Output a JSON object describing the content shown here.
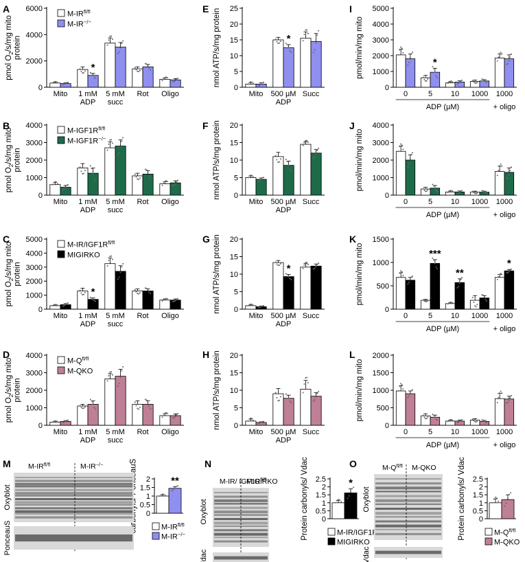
{
  "colors": {
    "white": "#ffffff",
    "blue": "#8f8ff0",
    "green": "#1e6b4a",
    "black": "#000000",
    "pink": "#bf7f97",
    "blot_bg": "#d9d9d9",
    "band": "#3a3a3a"
  },
  "chart_data": [
    {
      "panel": "A",
      "type": "bar",
      "ylabel": "pmol O2/s/mg mito protein",
      "ylim": [
        0,
        6000
      ],
      "yticks": [
        0,
        2000,
        4000,
        6000
      ],
      "categories": [
        [
          "Mito"
        ],
        [
          "1 mM",
          "ADP"
        ],
        [
          "5 mM",
          "succ"
        ],
        [
          "Rot"
        ],
        [
          "Oligo"
        ]
      ],
      "legend": [
        "M-IRfl/fl",
        "M-IR−/−"
      ],
      "series": [
        {
          "name": "M-IRfl/fl",
          "color": "white",
          "values": [
            320,
            1350,
            3350,
            1400,
            600
          ]
        },
        {
          "name": "M-IR−/−",
          "color": "blue",
          "values": [
            280,
            900,
            3050,
            1550,
            560
          ]
        }
      ],
      "errors": [
        [
          80,
          200,
          400,
          150,
          120
        ],
        [
          60,
          150,
          350,
          180,
          100
        ]
      ],
      "sig": [
        {
          "index": 1,
          "series": 1,
          "text": "*"
        }
      ]
    },
    {
      "panel": "B",
      "type": "bar",
      "ylabel": "pmol O2/s/mg mito protein",
      "ylim": [
        0,
        4000
      ],
      "yticks": [
        0,
        1000,
        2000,
        3000,
        4000
      ],
      "categories": [
        [
          "Mito"
        ],
        [
          "1 mM",
          "ADP"
        ],
        [
          "5 mM",
          "succ"
        ],
        [
          "Rot"
        ],
        [
          "Oligo"
        ]
      ],
      "legend": [
        "M-IGF1Rfl/fl",
        "M-IGF1R−/−"
      ],
      "series": [
        {
          "name": "M-IGF1Rfl/fl",
          "color": "white",
          "values": [
            600,
            1550,
            2700,
            1100,
            650
          ]
        },
        {
          "name": "M-IGF1R−/−",
          "color": "green",
          "values": [
            450,
            1250,
            2800,
            1200,
            700
          ]
        }
      ],
      "errors": [
        [
          120,
          250,
          350,
          150,
          120
        ],
        [
          100,
          300,
          350,
          200,
          120
        ]
      ],
      "sig": []
    },
    {
      "panel": "C",
      "type": "bar",
      "ylabel": "pmol O2/s/mg mito protein",
      "ylim": [
        0,
        5000
      ],
      "yticks": [
        0,
        1000,
        2000,
        3000,
        4000,
        5000
      ],
      "categories": [
        [
          "Mito"
        ],
        [
          "1 mM",
          "ADP"
        ],
        [
          "5 mM",
          "succ"
        ],
        [
          "Rot"
        ],
        [
          "Oligo"
        ]
      ],
      "legend": [
        "M-IR/IGF1Rfl/fl",
        "MIGIRKO"
      ],
      "series": [
        {
          "name": "M-IR/IGF1Rfl/fl",
          "color": "white",
          "values": [
            250,
            1300,
            3250,
            1300,
            650
          ]
        },
        {
          "name": "MIGIRKO",
          "color": "black",
          "values": [
            320,
            700,
            2700,
            1300,
            650
          ]
        }
      ],
      "errors": [
        [
          60,
          200,
          400,
          150,
          80
        ],
        [
          80,
          100,
          400,
          150,
          80
        ]
      ],
      "sig": [
        {
          "index": 1,
          "series": 1,
          "text": "*"
        }
      ]
    },
    {
      "panel": "D",
      "type": "bar",
      "ylabel": "pmol O2/s/mg mito protein",
      "ylim": [
        0,
        4000
      ],
      "yticks": [
        0,
        1000,
        2000,
        3000,
        4000
      ],
      "categories": [
        [
          "Mito"
        ],
        [
          "1 mM",
          "ADP"
        ],
        [
          "5 mM",
          "succ"
        ],
        [
          "Rot"
        ],
        [
          "Oligo"
        ]
      ],
      "legend": [
        "M-Qfl/fl",
        "M-QKO"
      ],
      "series": [
        {
          "name": "M-Qfl/fl",
          "color": "white",
          "values": [
            180,
            1100,
            2650,
            1200,
            550
          ]
        },
        {
          "name": "M-QKO",
          "color": "pink",
          "values": [
            220,
            1200,
            2800,
            1200,
            550
          ]
        }
      ],
      "errors": [
        [
          50,
          100,
          300,
          200,
          120
        ],
        [
          50,
          200,
          400,
          200,
          100
        ]
      ],
      "sig": []
    },
    {
      "panel": "E",
      "type": "bar",
      "ylabel": "nmol ATP/s/mg protein",
      "ylim": [
        0,
        25
      ],
      "yticks": [
        0,
        5,
        10,
        15,
        20,
        25
      ],
      "categories": [
        [
          "Mito"
        ],
        [
          "500 µM",
          "ADP"
        ],
        [
          "Succ"
        ]
      ],
      "series": [
        {
          "name": "M-IRfl/fl",
          "color": "white",
          "values": [
            1,
            15,
            15.5
          ]
        },
        {
          "name": "M-IR−/−",
          "color": "blue",
          "values": [
            1,
            12.5,
            14.5
          ]
        }
      ],
      "errors": [
        [
          0.5,
          0.8,
          2
        ],
        [
          0.4,
          1,
          2.5
        ]
      ],
      "sig": [
        {
          "index": 1,
          "series": 1,
          "text": "*"
        }
      ]
    },
    {
      "panel": "F",
      "type": "bar",
      "ylabel": "nmol ATP/s/mg protein",
      "ylim": [
        0,
        20
      ],
      "yticks": [
        0,
        5,
        10,
        15,
        20
      ],
      "categories": [
        [
          "Mito"
        ],
        [
          "500 µM",
          "ADP"
        ],
        [
          "Succ"
        ]
      ],
      "series": [
        {
          "name": "M-IGF1Rfl/fl",
          "color": "white",
          "values": [
            5,
            11,
            14.5
          ]
        },
        {
          "name": "M-IGF1R−/−",
          "color": "green",
          "values": [
            4.5,
            8.5,
            12
          ]
        }
      ],
      "errors": [
        [
          0.5,
          1.2,
          0.8
        ],
        [
          0.4,
          1.2,
          1
        ]
      ],
      "sig": []
    },
    {
      "panel": "G",
      "type": "bar",
      "ylabel": "nmol ATP/s/mg protein",
      "ylim": [
        0,
        20
      ],
      "yticks": [
        0,
        5,
        10,
        15,
        20
      ],
      "categories": [
        [
          "Mito"
        ],
        [
          "500 µM",
          "ADP"
        ],
        [
          "Succ"
        ]
      ],
      "series": [
        {
          "name": "M-IR/IGF1Rfl/fl",
          "color": "white",
          "values": [
            1,
            13.3,
            12
          ]
        },
        {
          "name": "MIGIRKO",
          "color": "black",
          "values": [
            0.7,
            9.3,
            12.3
          ]
        }
      ],
      "errors": [
        [
          0.3,
          0.6,
          1
        ],
        [
          0.2,
          0.6,
          0.6
        ]
      ],
      "sig": [
        {
          "index": 1,
          "series": 1,
          "text": "*"
        }
      ]
    },
    {
      "panel": "H",
      "type": "bar",
      "ylabel": "nmol ATP/s/mg protein",
      "ylim": [
        0,
        20
      ],
      "yticks": [
        0,
        5,
        10,
        15,
        20
      ],
      "categories": [
        [
          "Mito"
        ],
        [
          "500 µM",
          "ADP"
        ],
        [
          "Succ"
        ]
      ],
      "series": [
        {
          "name": "M-Qfl/fl",
          "color": "white",
          "values": [
            1.2,
            9,
            10.3
          ]
        },
        {
          "name": "M-QKO",
          "color": "pink",
          "values": [
            0.8,
            7.7,
            8.3
          ]
        }
      ],
      "errors": [
        [
          0.6,
          1.5,
          2.5
        ],
        [
          0.2,
          0.9,
          1
        ]
      ],
      "sig": []
    },
    {
      "panel": "I",
      "type": "bar",
      "ylabel": "pmol/min/mg mito",
      "ylim": [
        0,
        5000
      ],
      "yticks": [
        0,
        1000,
        2000,
        3000,
        4000,
        5000
      ],
      "xlabel": "ADP (µM)",
      "extra_label": "+ oligo",
      "categories": [
        [
          "0"
        ],
        [
          "5"
        ],
        [
          "10"
        ],
        [
          "1000"
        ],
        [
          "1000"
        ]
      ],
      "series": [
        {
          "name": "M-IRfl/fl",
          "color": "white",
          "values": [
            2050,
            600,
            280,
            370,
            1850
          ]
        },
        {
          "name": "M-IR−/−",
          "color": "blue",
          "values": [
            1800,
            950,
            330,
            400,
            1800
          ]
        }
      ],
      "errors": [
        [
          350,
          150,
          80,
          80,
          250
        ],
        [
          300,
          250,
          80,
          80,
          250
        ]
      ],
      "sig": [
        {
          "index": 1,
          "series": 1,
          "text": "*"
        }
      ]
    },
    {
      "panel": "J",
      "type": "bar",
      "ylabel": "pmol/min/mg mito",
      "ylim": [
        0,
        4000
      ],
      "yticks": [
        0,
        1000,
        2000,
        3000,
        4000
      ],
      "xlabel": "ADP (µM)",
      "extra_label": "+ oligo",
      "categories": [
        [
          "0"
        ],
        [
          "5"
        ],
        [
          "10"
        ],
        [
          "1000"
        ],
        [
          "1000"
        ]
      ],
      "series": [
        {
          "name": "M-IGF1Rfl/fl",
          "color": "white",
          "values": [
            2500,
            350,
            180,
            170,
            1350
          ]
        },
        {
          "name": "M-IGF1R−/−",
          "color": "green",
          "values": [
            2000,
            400,
            180,
            170,
            1300
          ]
        }
      ],
      "errors": [
        [
          300,
          100,
          60,
          60,
          300
        ],
        [
          300,
          150,
          60,
          60,
          250
        ]
      ],
      "sig": []
    },
    {
      "panel": "K",
      "type": "bar",
      "ylabel": "pmol/min/mg mito",
      "ylim": [
        0,
        1500
      ],
      "yticks": [
        0,
        500,
        1000,
        1500
      ],
      "xlabel": "ADP (µM)",
      "extra_label": "+ oligo",
      "categories": [
        [
          "0"
        ],
        [
          "5"
        ],
        [
          "10"
        ],
        [
          "1000"
        ],
        [
          "1000"
        ]
      ],
      "series": [
        {
          "name": "M-IR/IGF1Rfl/fl",
          "color": "white",
          "values": [
            680,
            190,
            120,
            190,
            680
          ]
        },
        {
          "name": "MIGIRKO",
          "color": "black",
          "values": [
            620,
            980,
            570,
            240,
            820
          ]
        }
      ],
      "errors": [
        [
          100,
          20,
          20,
          100,
          60
        ],
        [
          60,
          80,
          80,
          50,
          30
        ]
      ],
      "sig": [
        {
          "index": 1,
          "series": 1,
          "text": "***"
        },
        {
          "index": 2,
          "series": 1,
          "text": "**"
        },
        {
          "index": 4,
          "series": 1,
          "text": "*"
        }
      ]
    },
    {
      "panel": "L",
      "type": "bar",
      "ylabel": "pmol/min/mg mito",
      "ylim": [
        0,
        2000
      ],
      "yticks": [
        0,
        500,
        1000,
        1500,
        2000
      ],
      "xlabel": "ADP (µM)",
      "extra_label": "+ oligo",
      "categories": [
        [
          "0"
        ],
        [
          "5"
        ],
        [
          "10"
        ],
        [
          "1000"
        ],
        [
          "1000"
        ]
      ],
      "series": [
        {
          "name": "M-Qfl/fl",
          "color": "white",
          "values": [
            980,
            270,
            120,
            150,
            760
          ]
        },
        {
          "name": "M-QKO",
          "color": "pink",
          "values": [
            900,
            230,
            120,
            110,
            750
          ]
        }
      ],
      "errors": [
        [
          150,
          60,
          30,
          40,
          150
        ],
        [
          80,
          60,
          30,
          30,
          80
        ]
      ],
      "sig": []
    },
    {
      "panel": "M",
      "type": "bar",
      "ylabel": "Protein carbonyls/ PonceauS",
      "ylim": [
        0,
        2.0
      ],
      "yticks": [
        0,
        0.5,
        1.0,
        1.5,
        2.0
      ],
      "categories": [
        [
          ""
        ]
      ],
      "legend": [
        "M-IRfl/fl",
        "M-IR−/−"
      ],
      "series": [
        {
          "name": "M-IRfl/fl",
          "color": "white",
          "values": [
            1.0
          ]
        },
        {
          "name": "M-IR−/−",
          "color": "blue",
          "values": [
            1.45
          ]
        }
      ],
      "errors": [
        [
          0.08
        ],
        [
          0.1
        ]
      ],
      "sig": [
        {
          "index": 0,
          "series": 1,
          "text": "**"
        }
      ]
    },
    {
      "panel": "N",
      "type": "bar",
      "ylabel": "Protein carbonyls/ Vdac",
      "ylim": [
        0,
        2.5
      ],
      "yticks": [
        0,
        0.5,
        1.0,
        1.5,
        2.0,
        2.5
      ],
      "categories": [
        [
          ""
        ]
      ],
      "legend": [
        "M-IR/IGF1Rfl/fl",
        "MIGIRKO"
      ],
      "series": [
        {
          "name": "M-IR/IGF1Rfl/fl",
          "color": "white",
          "values": [
            1.0
          ]
        },
        {
          "name": "MIGIRKO",
          "color": "black",
          "values": [
            1.62
          ]
        }
      ],
      "errors": [
        [
          0.15
        ],
        [
          0.25
        ]
      ],
      "sig": [
        {
          "index": 0,
          "series": 1,
          "text": "*"
        }
      ]
    },
    {
      "panel": "O",
      "type": "bar",
      "ylabel": "Protein carbonyls/ Vdac",
      "ylim": [
        0,
        2.5
      ],
      "yticks": [
        0,
        0.5,
        1.0,
        1.5,
        2.0,
        2.5
      ],
      "categories": [
        [
          ""
        ]
      ],
      "legend": [
        "M-Qfl/fl",
        "M-QKO"
      ],
      "series": [
        {
          "name": "M-Qfl/fl",
          "color": "white",
          "values": [
            1.0
          ]
        },
        {
          "name": "M-QKO",
          "color": "pink",
          "values": [
            1.2
          ]
        }
      ],
      "errors": [
        [
          0.25
        ],
        [
          0.3
        ]
      ],
      "sig": []
    }
  ],
  "blots": {
    "M": {
      "left_group": "M-IRfl/fl",
      "right_group": "M-IR−/−",
      "top_label": "Oxyblot",
      "bottom_label": "PonceauS"
    },
    "N": {
      "left_group": "M-IR/ IGF1Rfl/fl",
      "right_group": "MIGIRKO",
      "top_label": "Oxyblot",
      "bottom_label": "Vdac"
    },
    "O": {
      "left_group": "M-Qfl/fl",
      "right_group": "M-QKO",
      "top_label": "Oxyblot",
      "bottom_label": "Vdac"
    }
  }
}
